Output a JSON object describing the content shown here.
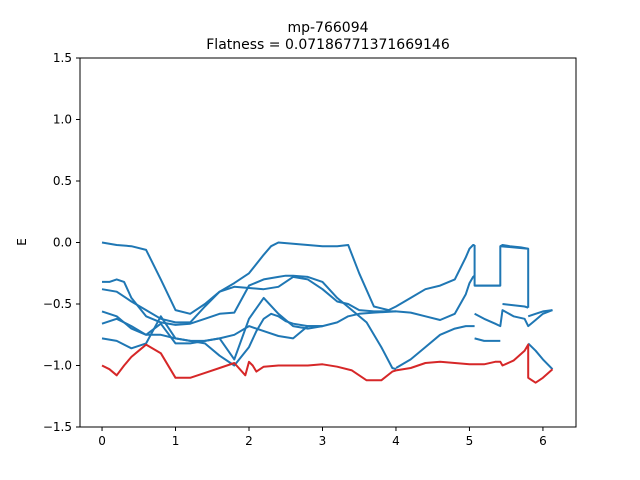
{
  "chart_data": {
    "type": "line",
    "title_line1": "mp-766094",
    "title_line2": "Flatness = 0.07186771371669146",
    "xlabel": "",
    "ylabel": "E",
    "xlim": [
      -0.3,
      6.45
    ],
    "ylim": [
      -1.5,
      1.5
    ],
    "xticks": [
      0,
      1,
      2,
      3,
      4,
      5,
      6
    ],
    "yticks": [
      -1.5,
      -1.0,
      -0.5,
      0.0,
      0.5,
      1.0,
      1.5
    ],
    "xtick_labels": [
      "0",
      "1",
      "2",
      "3",
      "4",
      "5",
      "6"
    ],
    "ytick_labels": [
      "−1.5",
      "−1.0",
      "−0.5",
      "0.0",
      "0.5",
      "1.0",
      "1.5"
    ],
    "grid": false,
    "colors": {
      "bands": "#1f77b4",
      "flat_band": "#d62728"
    },
    "series": [
      {
        "color": "#1f77b4",
        "x": [
          0,
          0.2,
          0.4,
          0.6,
          0.8,
          1.0,
          1.2,
          1.4,
          1.6,
          1.8,
          2.0,
          2.2,
          2.3,
          2.4,
          2.6,
          2.8,
          3.0,
          3.2,
          3.35,
          3.5,
          3.7,
          3.9,
          4.0,
          4.2,
          4.4,
          4.6,
          4.8,
          4.95,
          5.0,
          5.05,
          5.07
        ],
        "y": [
          0.0,
          -0.02,
          -0.03,
          -0.06,
          -0.3,
          -0.55,
          -0.58,
          -0.5,
          -0.4,
          -0.33,
          -0.25,
          -0.1,
          -0.03,
          0.0,
          -0.01,
          -0.02,
          -0.03,
          -0.03,
          -0.02,
          -0.25,
          -0.52,
          -0.55,
          -0.52,
          -0.45,
          -0.38,
          -0.35,
          -0.3,
          -0.12,
          -0.05,
          -0.02,
          -0.02
        ]
      },
      {
        "color": "#1f77b4",
        "x": [
          5.42,
          5.45,
          5.55,
          5.7,
          5.8
        ],
        "y": [
          -0.03,
          -0.02,
          -0.03,
          -0.04,
          -0.05
        ]
      },
      {
        "color": "#1f77b4",
        "x": [
          0,
          0.1,
          0.2,
          0.3,
          0.4,
          0.6,
          0.8,
          1.0,
          1.2,
          1.4,
          1.6,
          1.8,
          2.0,
          2.2,
          2.4,
          2.5,
          2.6,
          2.8,
          3.0,
          3.2,
          3.4,
          3.6,
          3.8,
          3.95,
          4.0
        ],
        "y": [
          -0.32,
          -0.32,
          -0.3,
          -0.32,
          -0.45,
          -0.6,
          -0.65,
          -0.67,
          -0.66,
          -0.62,
          -0.58,
          -0.57,
          -0.35,
          -0.3,
          -0.28,
          -0.27,
          -0.27,
          -0.28,
          -0.32,
          -0.45,
          -0.55,
          -0.65,
          -0.85,
          -1.02,
          -1.03
        ]
      },
      {
        "color": "#1f77b4",
        "x": [
          0,
          0.2,
          0.4,
          0.6,
          0.8,
          1.0,
          1.2,
          1.4,
          1.6,
          1.8,
          2.0,
          2.2,
          2.4,
          2.6,
          2.8,
          3.0,
          3.2,
          3.35,
          3.5,
          3.7,
          4.0,
          4.2,
          4.4,
          4.6,
          4.8,
          4.95,
          5.0,
          5.05,
          5.07
        ],
        "y": [
          -0.38,
          -0.4,
          -0.48,
          -0.55,
          -0.62,
          -0.65,
          -0.65,
          -0.52,
          -0.4,
          -0.36,
          -0.37,
          -0.38,
          -0.36,
          -0.28,
          -0.3,
          -0.38,
          -0.48,
          -0.5,
          -0.55,
          -0.56,
          -0.56,
          -0.57,
          -0.6,
          -0.63,
          -0.58,
          -0.42,
          -0.33,
          -0.28,
          -0.27
        ]
      },
      {
        "color": "#1f77b4",
        "x": [
          0,
          0.2,
          0.4,
          0.6,
          0.8,
          1.0,
          1.2,
          1.4,
          1.6,
          1.8,
          2.0,
          2.2,
          2.4,
          2.6,
          2.8,
          3.0,
          3.2,
          3.35,
          3.5,
          3.7,
          4.0
        ],
        "y": [
          -0.66,
          -0.62,
          -0.68,
          -0.75,
          -0.75,
          -0.78,
          -0.8,
          -0.8,
          -0.78,
          -0.75,
          -0.68,
          -0.72,
          -0.76,
          -0.78,
          -0.68,
          -0.68,
          -0.65,
          -0.6,
          -0.58,
          -0.57,
          -0.56
        ]
      },
      {
        "color": "#1f77b4",
        "x": [
          0,
          0.2,
          0.4,
          0.6,
          0.8,
          1.0,
          1.2,
          1.4,
          1.6,
          1.8,
          2.0,
          2.2,
          2.4,
          2.6,
          2.8,
          3.0
        ],
        "y": [
          -0.56,
          -0.6,
          -0.7,
          -0.75,
          -0.66,
          -0.82,
          -0.82,
          -0.8,
          -0.78,
          -0.95,
          -0.62,
          -0.45,
          -0.58,
          -0.68,
          -0.7,
          -0.68
        ]
      },
      {
        "color": "#1f77b4",
        "x": [
          0,
          0.2,
          0.4,
          0.6,
          0.8,
          1.0,
          1.2,
          1.4,
          1.6,
          1.8,
          2.0,
          2.1,
          2.2,
          2.3,
          2.4,
          2.5,
          2.6,
          2.8,
          3.0
        ],
        "y": [
          -0.78,
          -0.8,
          -0.86,
          -0.82,
          -0.6,
          -0.78,
          -0.8,
          -0.82,
          -0.92,
          -1.0,
          -0.85,
          -0.72,
          -0.62,
          -0.58,
          -0.6,
          -0.64,
          -0.66,
          -0.68,
          -0.68
        ]
      },
      {
        "color": "#1f77b4",
        "x": [
          4.0,
          4.2,
          4.4,
          4.6,
          4.8,
          4.95,
          5.0,
          5.05,
          5.07
        ],
        "y": [
          -1.02,
          -0.95,
          -0.85,
          -0.75,
          -0.7,
          -0.68,
          -0.68,
          -0.68,
          -0.68
        ]
      },
      {
        "color": "#1f77b4",
        "x": [
          5.07,
          5.2,
          5.35,
          5.42,
          5.45,
          5.6,
          5.75,
          5.8,
          5.9,
          6.0,
          6.13
        ],
        "y": [
          -0.58,
          -0.62,
          -0.66,
          -0.68,
          -0.55,
          -0.6,
          -0.62,
          -0.68,
          -0.63,
          -0.58,
          -0.55
        ]
      },
      {
        "color": "#1f77b4",
        "x": [
          5.07,
          5.42
        ],
        "y": [
          -0.35,
          -0.35
        ]
      },
      {
        "color": "#1f77b4",
        "x": [
          5.45,
          5.6,
          5.75,
          5.8
        ],
        "y": [
          -0.5,
          -0.51,
          -0.52,
          -0.53
        ]
      },
      {
        "color": "#1f77b4",
        "x": [
          5.07,
          5.2,
          5.35,
          5.42
        ],
        "y": [
          -0.78,
          -0.8,
          -0.8,
          -0.8
        ]
      },
      {
        "color": "#1f77b4",
        "x": [
          5.8,
          5.9,
          6.0,
          6.13
        ],
        "y": [
          -0.6,
          -0.58,
          -0.56,
          -0.55
        ]
      },
      {
        "color": "#1f77b4",
        "x": [
          5.8,
          5.9,
          6.0,
          6.13
        ],
        "y": [
          -0.82,
          -0.88,
          -0.95,
          -1.03
        ]
      },
      {
        "color": "#1f77b4",
        "x": [
          5.07,
          5.07,
          5.42,
          5.42,
          5.8,
          5.8
        ],
        "y": [
          -0.02,
          -0.35,
          -0.35,
          -0.03,
          -0.05,
          -0.53
        ]
      },
      {
        "color": "#d62728",
        "x": [
          0,
          0.1,
          0.2,
          0.3,
          0.4,
          0.5,
          0.6,
          0.8,
          1.0,
          1.2,
          1.4,
          1.6,
          1.8,
          1.95,
          2.0,
          2.05,
          2.1,
          2.2,
          2.4,
          2.6,
          2.8,
          3.0,
          3.2,
          3.4,
          3.6,
          3.8,
          3.95,
          4.0,
          4.2,
          4.4,
          4.6,
          4.8,
          5.0,
          5.2,
          5.35,
          5.42,
          5.45,
          5.6,
          5.75,
          5.8,
          5.8,
          5.9,
          6.0,
          6.13
        ],
        "y": [
          -1.0,
          -1.03,
          -1.08,
          -1.0,
          -0.93,
          -0.88,
          -0.83,
          -0.9,
          -1.1,
          -1.1,
          -1.06,
          -1.02,
          -0.98,
          -1.08,
          -0.97,
          -1.0,
          -1.05,
          -1.01,
          -1.0,
          -1.0,
          -1.0,
          -0.99,
          -1.01,
          -1.04,
          -1.12,
          -1.12,
          -1.05,
          -1.04,
          -1.02,
          -0.98,
          -0.97,
          -0.98,
          -0.99,
          -0.99,
          -0.97,
          -0.97,
          -1.0,
          -0.96,
          -0.88,
          -0.83,
          -1.1,
          -1.14,
          -1.1,
          -1.03
        ]
      }
    ]
  }
}
